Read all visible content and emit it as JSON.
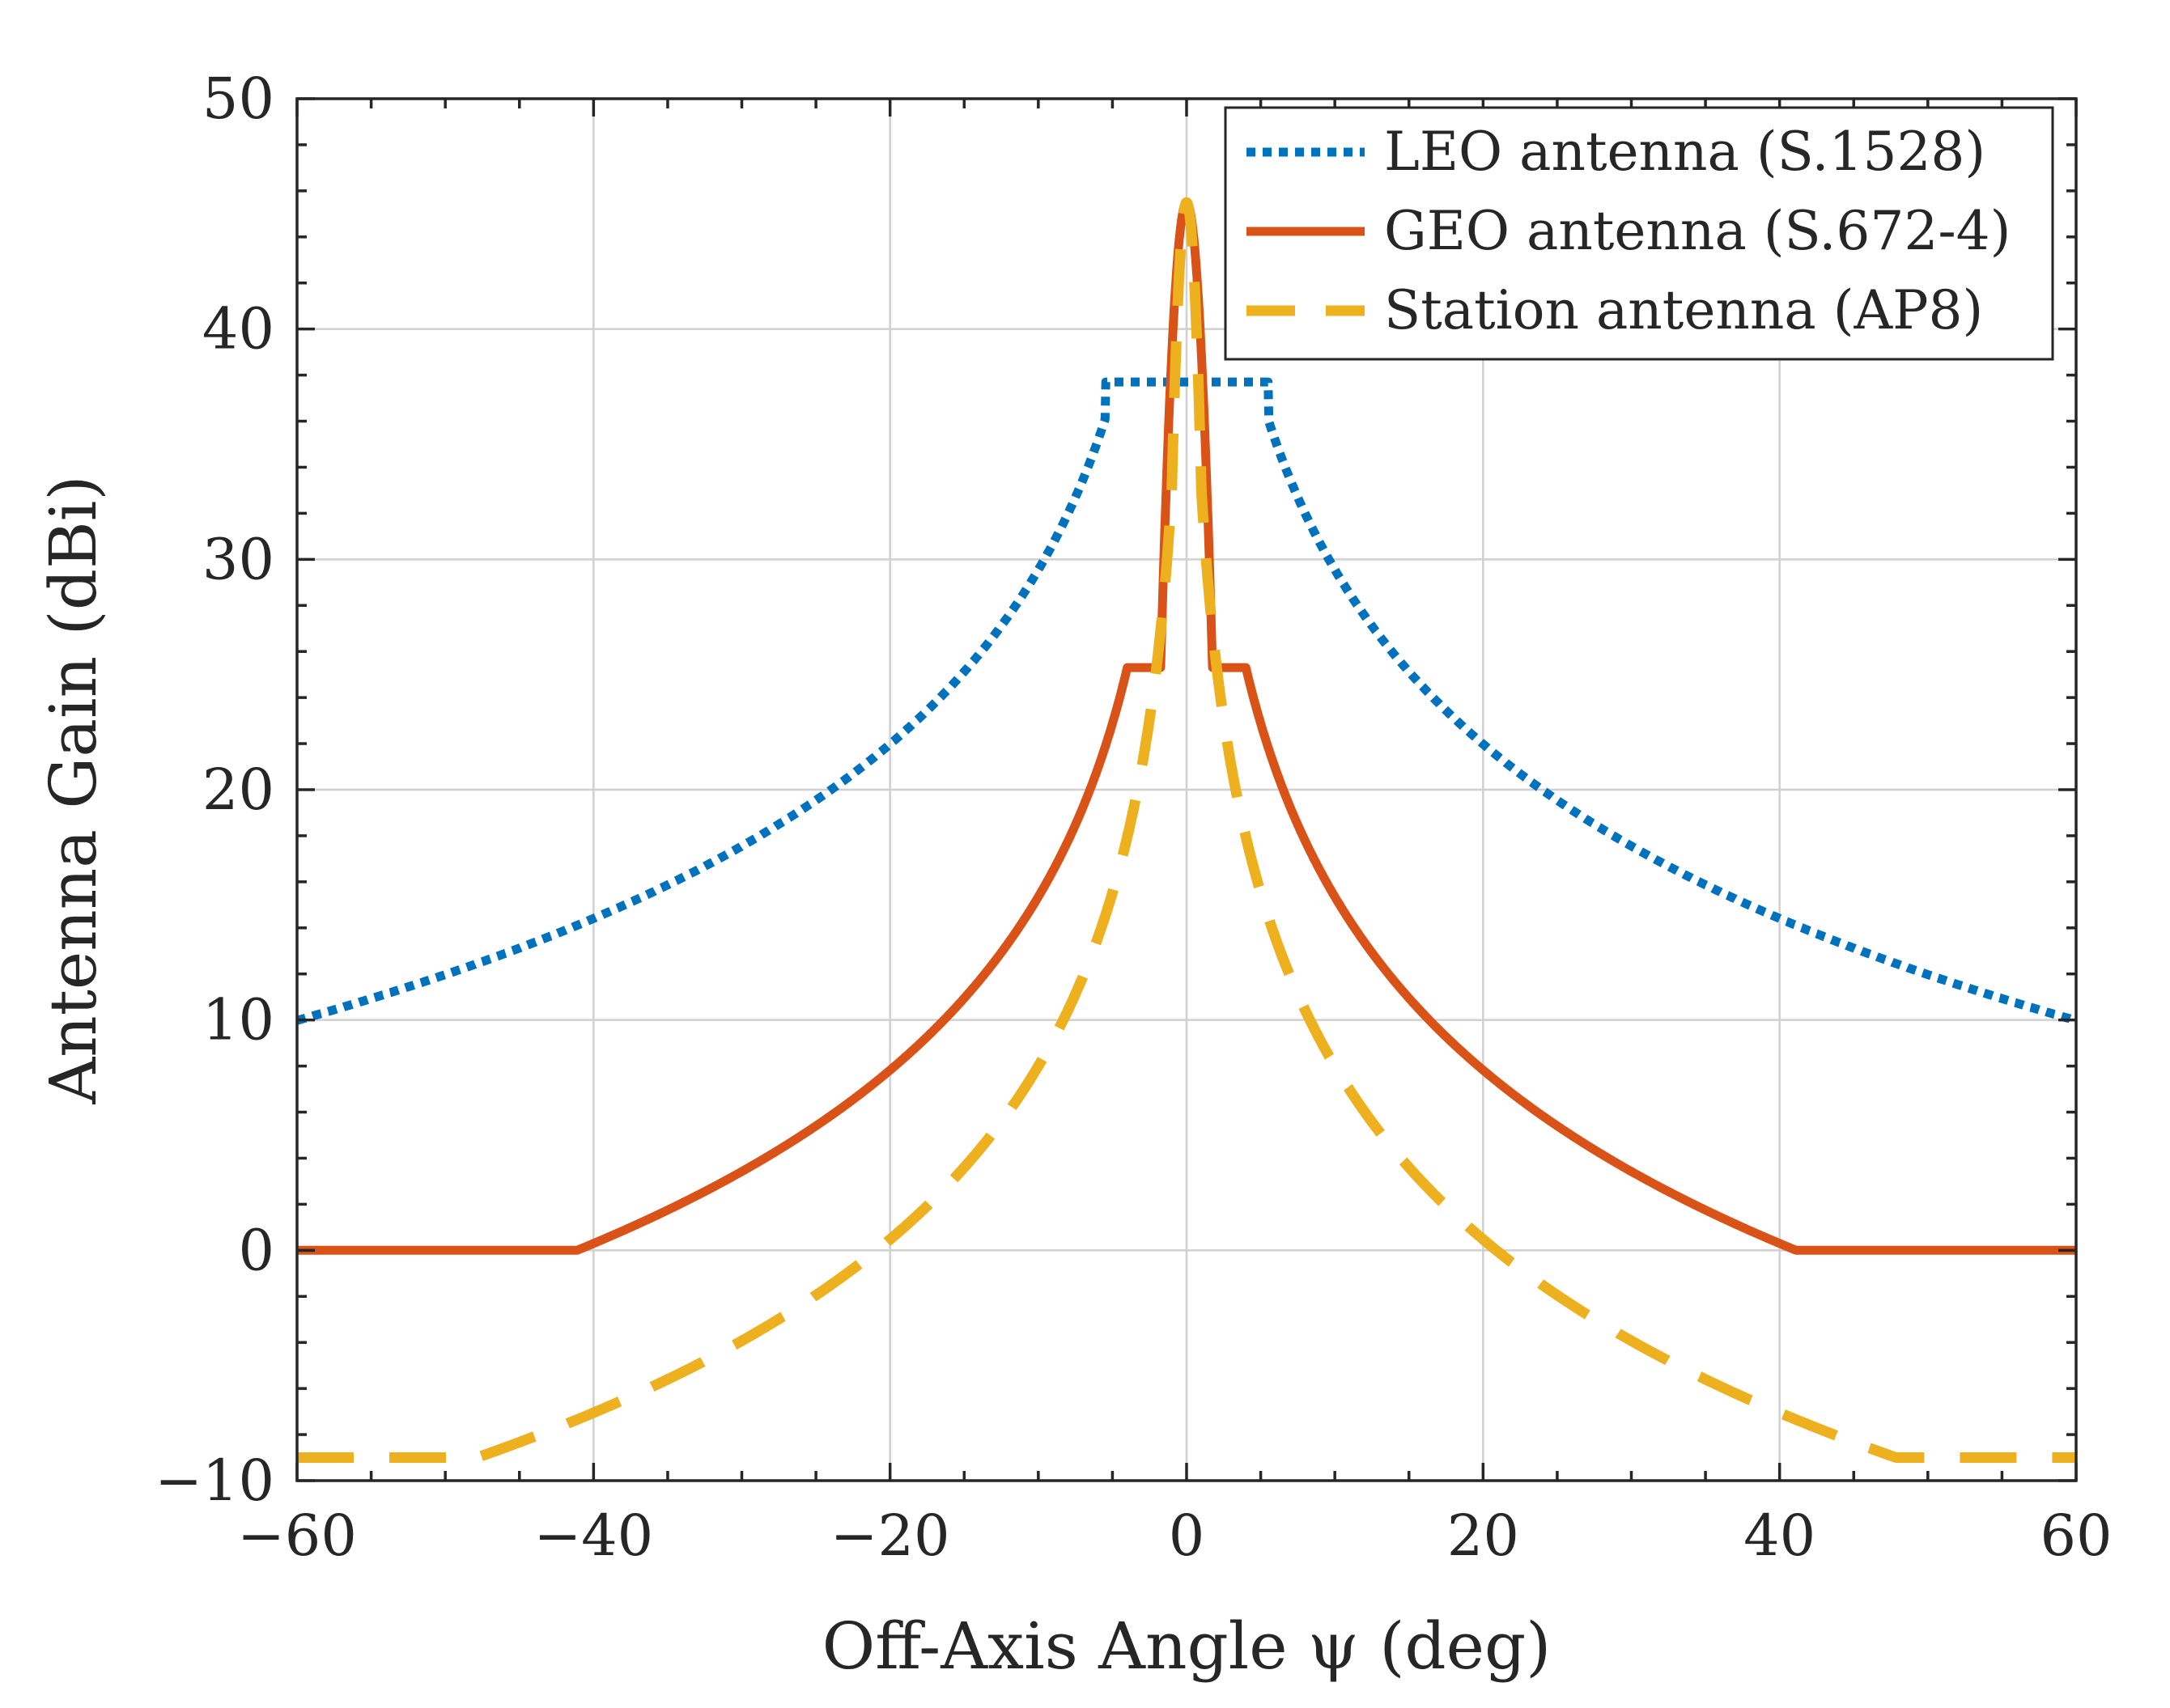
{
  "chart_data": {
    "type": "line",
    "title": "",
    "xlabel": "Off-Axis Angle ψ (deg)",
    "ylabel": "Antenna Gain (dBi)",
    "xlim": [
      -60,
      60
    ],
    "ylim": [
      -10,
      50
    ],
    "xticks": [
      -60,
      -40,
      -20,
      0,
      20,
      40,
      60
    ],
    "xtick_labels": [
      "−60",
      "−40",
      "−20",
      "0",
      "20",
      "40",
      "60"
    ],
    "yticks": [
      -10,
      0,
      10,
      20,
      30,
      40,
      50
    ],
    "ytick_labels": [
      "−10",
      "0",
      "10",
      "20",
      "30",
      "40",
      "50"
    ],
    "x_minor_step": 5,
    "y_minor_step": 2,
    "grid": true,
    "legend_position": "top-right",
    "series": [
      {
        "name": "LEO antenna (S.1528)",
        "color": "#0072BD",
        "style": "dotted",
        "model": {
          "peak": 37.7,
          "flat_halfwidth": 5.5,
          "sidelobe_a": 54.7,
          "sidelobe_b": 25.15
        }
      },
      {
        "name": "GEO antenna (S.672-4)",
        "color": "#D95319",
        "style": "solid",
        "model": {
          "peak": 45.5,
          "mainlobe_edge": 1.75,
          "plateau": 25.3,
          "plateau_end": 4.0,
          "sidelobe_a": 40.35,
          "sidelobe_b": 25.0,
          "floor": 0
        }
      },
      {
        "name": "Station antenna (AP8)",
        "color": "#EDB120",
        "style": "dashed",
        "model": {
          "peak": 45.5,
          "mainlobe_k": 12.5,
          "sidelobe_a": 33,
          "sidelobe_b": 25,
          "floor": -9
        }
      }
    ]
  }
}
